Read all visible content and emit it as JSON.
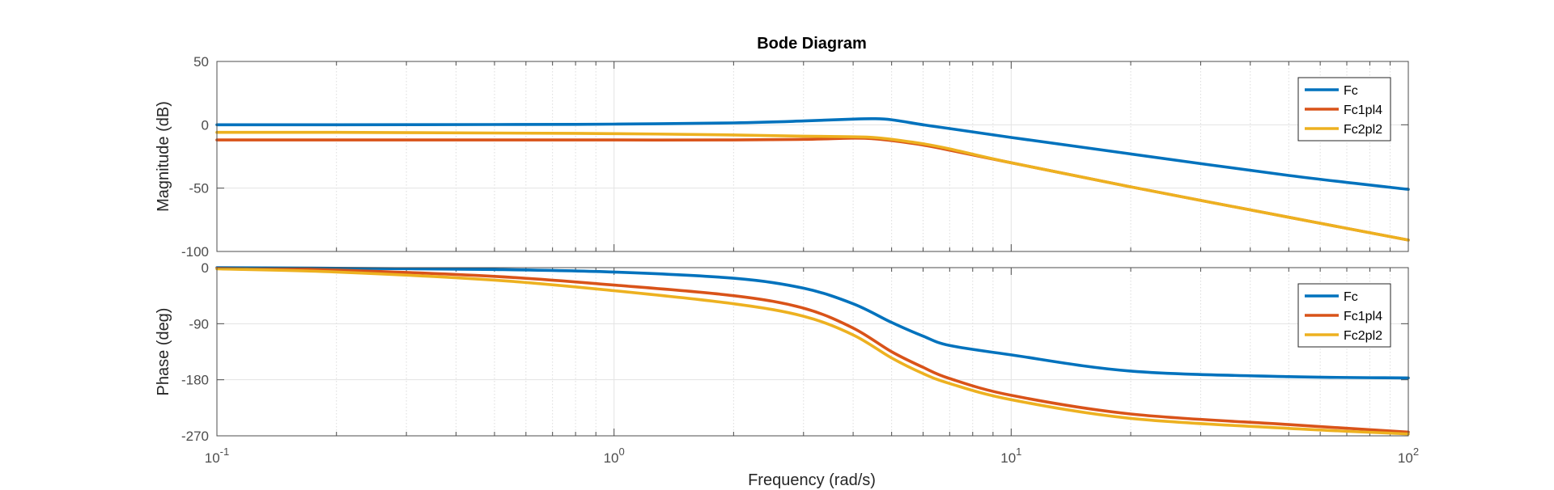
{
  "chart_data": [
    {
      "type": "line",
      "title": "Bode Diagram",
      "xlabel": "Frequency  (rad/s)",
      "ylabel": "Magnitude (dB)",
      "xscale": "log",
      "xlim": [
        0.1,
        100
      ],
      "ylim": [
        -100,
        50
      ],
      "yticks": [
        -100,
        -50,
        0,
        50
      ],
      "grid": true,
      "legend_position": "top-right",
      "x": [
        0.1,
        0.2,
        0.5,
        1,
        2,
        3,
        4,
        4.5,
        5,
        6,
        7,
        10,
        20,
        50,
        100
      ],
      "series": [
        {
          "name": "Fc",
          "color": "#0072BD",
          "values": [
            0,
            0,
            0.2,
            0.5,
            1.5,
            3,
            4.5,
            4.8,
            4,
            0,
            -3,
            -10,
            -23,
            -40,
            -51
          ]
        },
        {
          "name": "Fc1pl4",
          "color": "#D95319",
          "values": [
            -12,
            -12,
            -12,
            -12,
            -12,
            -11.5,
            -10.5,
            -11,
            -12.5,
            -16,
            -20,
            -30,
            -49,
            -73,
            -91
          ]
        },
        {
          "name": "Fc2pl2",
          "color": "#EDB120",
          "values": [
            -6,
            -6,
            -6.5,
            -7,
            -8,
            -9,
            -9.5,
            -10,
            -11.5,
            -15,
            -19,
            -30,
            -49,
            -73,
            -91
          ]
        }
      ]
    },
    {
      "type": "line",
      "xlabel": "Frequency  (rad/s)",
      "ylabel": "Phase (deg)",
      "xscale": "log",
      "xlim": [
        0.1,
        100
      ],
      "ylim": [
        -270,
        0
      ],
      "yticks": [
        -270,
        -180,
        -90,
        0
      ],
      "grid": true,
      "legend_position": "top-right",
      "x": [
        0.1,
        0.2,
        0.5,
        1,
        2,
        3,
        4,
        5,
        6,
        7,
        10,
        20,
        50,
        100
      ],
      "series": [
        {
          "name": "Fc",
          "color": "#0072BD",
          "values": [
            0,
            -1,
            -3,
            -7,
            -17,
            -33,
            -58,
            -88,
            -110,
            -125,
            -140,
            -166,
            -175,
            -177
          ]
        },
        {
          "name": "Fc1pl4",
          "color": "#D95319",
          "values": [
            -1,
            -4,
            -14,
            -28,
            -45,
            -65,
            -97,
            -135,
            -160,
            -178,
            -205,
            -235,
            -252,
            -264
          ]
        },
        {
          "name": "Fc2pl2",
          "color": "#EDB120",
          "values": [
            -2,
            -7,
            -20,
            -37,
            -58,
            -78,
            -108,
            -145,
            -170,
            -186,
            -212,
            -242,
            -258,
            -267
          ]
        }
      ]
    }
  ],
  "x_ticks": [
    {
      "base": "10",
      "exp": "-1"
    },
    {
      "base": "10",
      "exp": "0"
    },
    {
      "base": "10",
      "exp": "1"
    },
    {
      "base": "10",
      "exp": "2"
    }
  ]
}
